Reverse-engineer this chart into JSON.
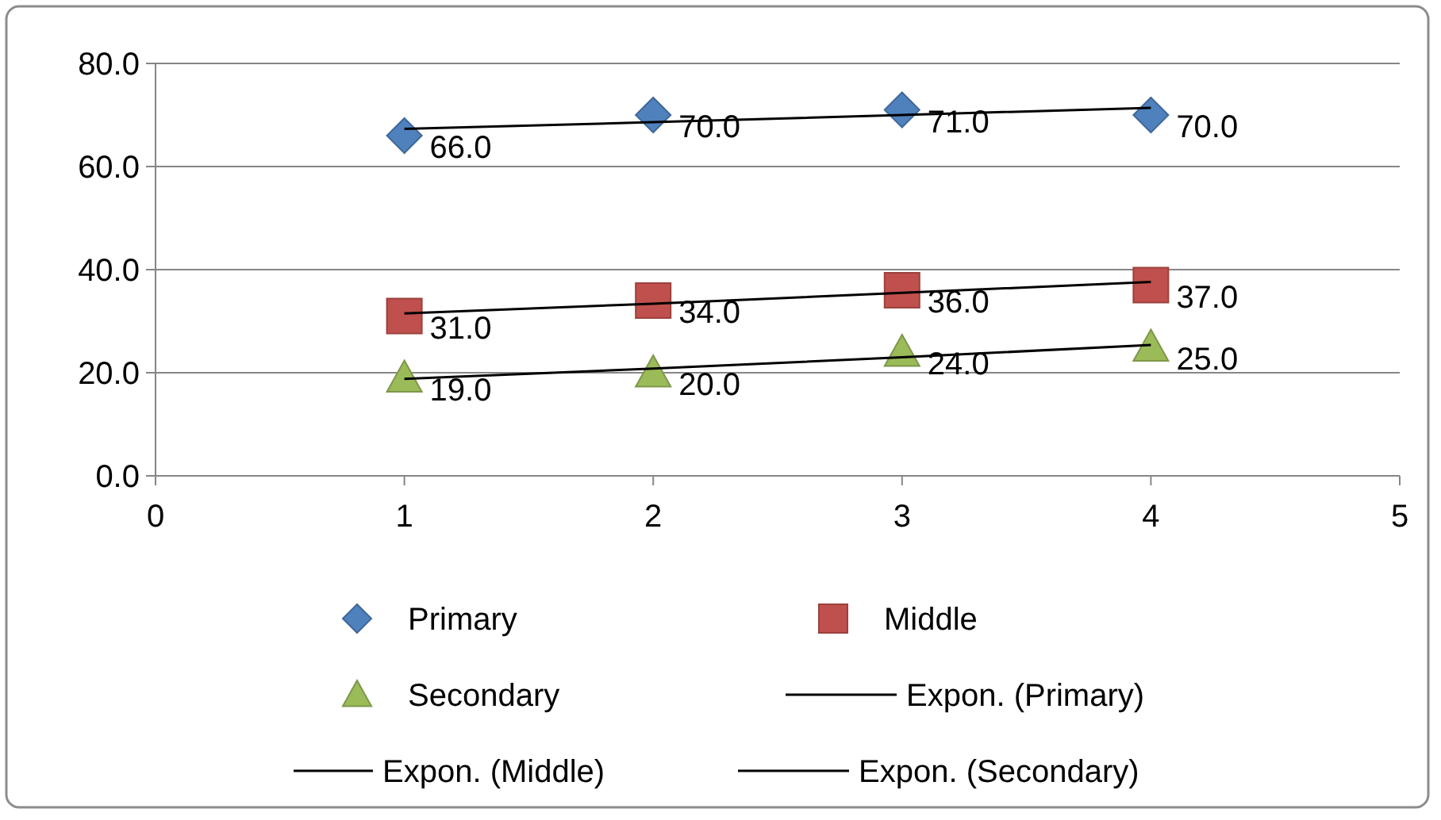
{
  "chart_data": {
    "type": "scatter",
    "xlim": [
      0,
      5
    ],
    "xticks": [
      0,
      1,
      2,
      3,
      4,
      5
    ],
    "ylim": [
      0,
      80
    ],
    "yticks": [
      {
        "value": 0,
        "label": "0.0"
      },
      {
        "value": 20,
        "label": "20.0"
      },
      {
        "value": 40,
        "label": "40.0"
      },
      {
        "value": 60,
        "label": "60.0"
      },
      {
        "value": 80,
        "label": "80.0"
      }
    ],
    "grid": "y",
    "legend": "bottom",
    "series": [
      {
        "name": "Primary",
        "marker": "diamond",
        "color": "#4f81bd",
        "x": [
          1,
          2,
          3,
          4
        ],
        "values": [
          66,
          70,
          71,
          70
        ],
        "value_labels": [
          "66.0",
          "70.0",
          "71.0",
          "70.0"
        ]
      },
      {
        "name": "Middle",
        "marker": "square",
        "color": "#c0504d",
        "x": [
          1,
          2,
          3,
          4
        ],
        "values": [
          31,
          34,
          36,
          37
        ],
        "value_labels": [
          "31.0",
          "34.0",
          "36.0",
          "37.0"
        ]
      },
      {
        "name": "Secondary",
        "marker": "triangle",
        "color": "#9bbb59",
        "x": [
          1,
          2,
          3,
          4
        ],
        "values": [
          19,
          20,
          24,
          25
        ],
        "value_labels": [
          "19.0",
          "20.0",
          "24.0",
          "25.0"
        ]
      },
      {
        "name": "Expon. (Primary)",
        "type": "line",
        "marker": "none",
        "line_style": "solid",
        "color": "#000000",
        "x": [
          1,
          2,
          3,
          4
        ],
        "values": [
          67.3,
          68.6,
          70.0,
          71.4
        ]
      },
      {
        "name": "Expon. (Middle)",
        "type": "line",
        "marker": "none",
        "line_style": "solid",
        "color": "#000000",
        "x": [
          1,
          2,
          3,
          4
        ],
        "values": [
          31.5,
          33.4,
          35.5,
          37.6
        ]
      },
      {
        "name": "Expon. (Secondary)",
        "type": "line",
        "marker": "none",
        "line_style": "solid",
        "color": "#000000",
        "x": [
          1,
          2,
          3,
          4
        ],
        "values": [
          18.8,
          20.8,
          23.0,
          25.4
        ]
      }
    ]
  }
}
